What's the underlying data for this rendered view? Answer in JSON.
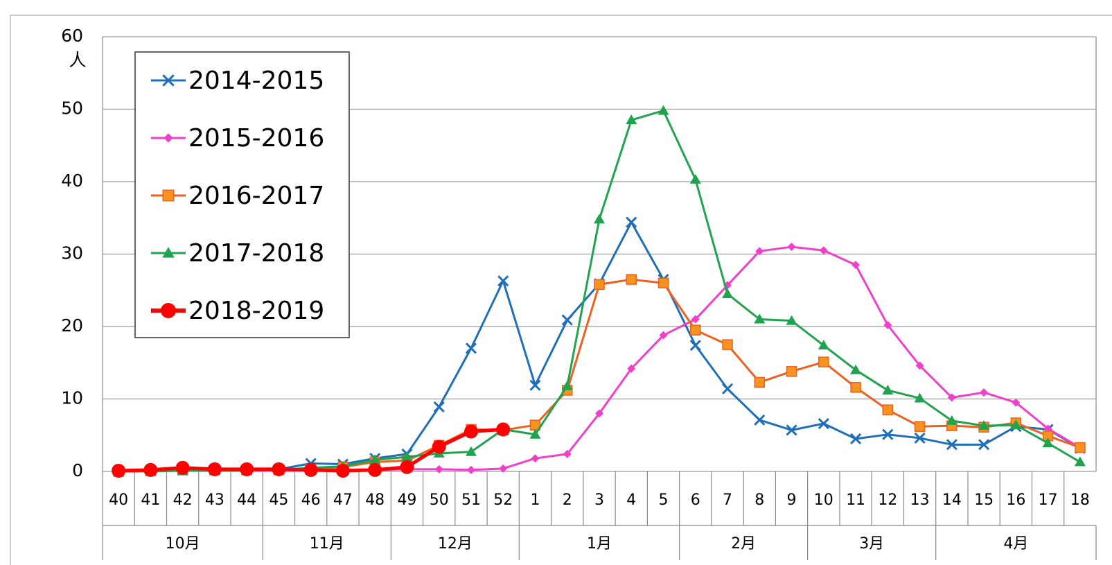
{
  "chart_data": {
    "type": "line",
    "y_unit": "人",
    "categories": [
      "40",
      "41",
      "42",
      "43",
      "44",
      "45",
      "46",
      "47",
      "48",
      "49",
      "50",
      "51",
      "52",
      "1",
      "2",
      "3",
      "4",
      "5",
      "6",
      "7",
      "8",
      "9",
      "10",
      "11",
      "12",
      "13",
      "14",
      "15",
      "16",
      "17",
      "18"
    ],
    "groups": [
      {
        "label": "10月",
        "size": 5
      },
      {
        "label": "11月",
        "size": 4
      },
      {
        "label": "12月",
        "size": 4
      },
      {
        "label": "1月",
        "size": 5
      },
      {
        "label": "2月",
        "size": 4
      },
      {
        "label": "3月",
        "size": 4
      },
      {
        "label": "4月",
        "size": 5
      }
    ],
    "series": [
      {
        "name": "2014-2015",
        "color": "#1f6fb8",
        "marker": "x",
        "values": [
          0,
          0.1,
          0.2,
          0.2,
          0.2,
          0.3,
          1.1,
          1.0,
          1.8,
          2.4,
          8.9,
          17,
          26.3,
          11.9,
          20.9,
          25.9,
          34.4,
          26.5,
          17.4,
          11.4,
          7.1,
          5.7,
          6.6,
          4.5,
          5.1,
          4.6,
          3.7,
          3.7,
          6.2,
          5.8,
          3.2
        ]
      },
      {
        "name": "2015-2016",
        "color": "#f23fcb",
        "marker": "diamond",
        "values": [
          0.1,
          0.1,
          0.1,
          0.1,
          0.1,
          0.1,
          0.1,
          0.2,
          0.2,
          0.3,
          0.3,
          0.2,
          0.4,
          1.8,
          2.4,
          8,
          14.2,
          18.8,
          21,
          25.7,
          30.4,
          31,
          30.5,
          28.5,
          20.2,
          14.6,
          10.2,
          10.9,
          9.5,
          5.9,
          3.3
        ]
      },
      {
        "name": "2016-2017",
        "color": "#ed6120",
        "marker": "square",
        "values": [
          0,
          0.1,
          0.2,
          0.2,
          0.2,
          0.2,
          0.3,
          0.6,
          1.3,
          1.5,
          3.6,
          5.8,
          5.7,
          6.4,
          11.2,
          25.8,
          26.5,
          26,
          19.5,
          17.5,
          12.3,
          13.8,
          15.1,
          11.6,
          8.5,
          6.2,
          6.3,
          6.1,
          6.7,
          4.9,
          3.3
        ]
      },
      {
        "name": "2017-2018",
        "color": "#1fa34f",
        "marker": "triangle",
        "values": [
          0,
          0,
          0.1,
          0.1,
          0.1,
          0.2,
          0.5,
          0.7,
          1.6,
          2.0,
          2.5,
          2.7,
          5.8,
          5.1,
          11.8,
          34.8,
          48.5,
          49.8,
          40.3,
          24.5,
          21,
          20.8,
          17.4,
          14,
          11.2,
          10.1,
          7.0,
          6.3,
          6.4,
          3.9,
          1.3
        ]
      },
      {
        "name": "2018-2019",
        "color": "#ff0000",
        "marker": "circle",
        "values": [
          0.1,
          0.2,
          0.5,
          0.3,
          0.3,
          0.3,
          0.2,
          0.1,
          0.2,
          0.6,
          3.4,
          5.5,
          5.8,
          null,
          null,
          null,
          null,
          null,
          null,
          null,
          null,
          null,
          null,
          null,
          null,
          null,
          null,
          null,
          null,
          null,
          null
        ]
      }
    ],
    "ylim": [
      0,
      60
    ],
    "yticks": [
      0,
      10,
      20,
      30,
      40,
      50,
      60
    ],
    "grid": true,
    "legend": "upper left"
  }
}
